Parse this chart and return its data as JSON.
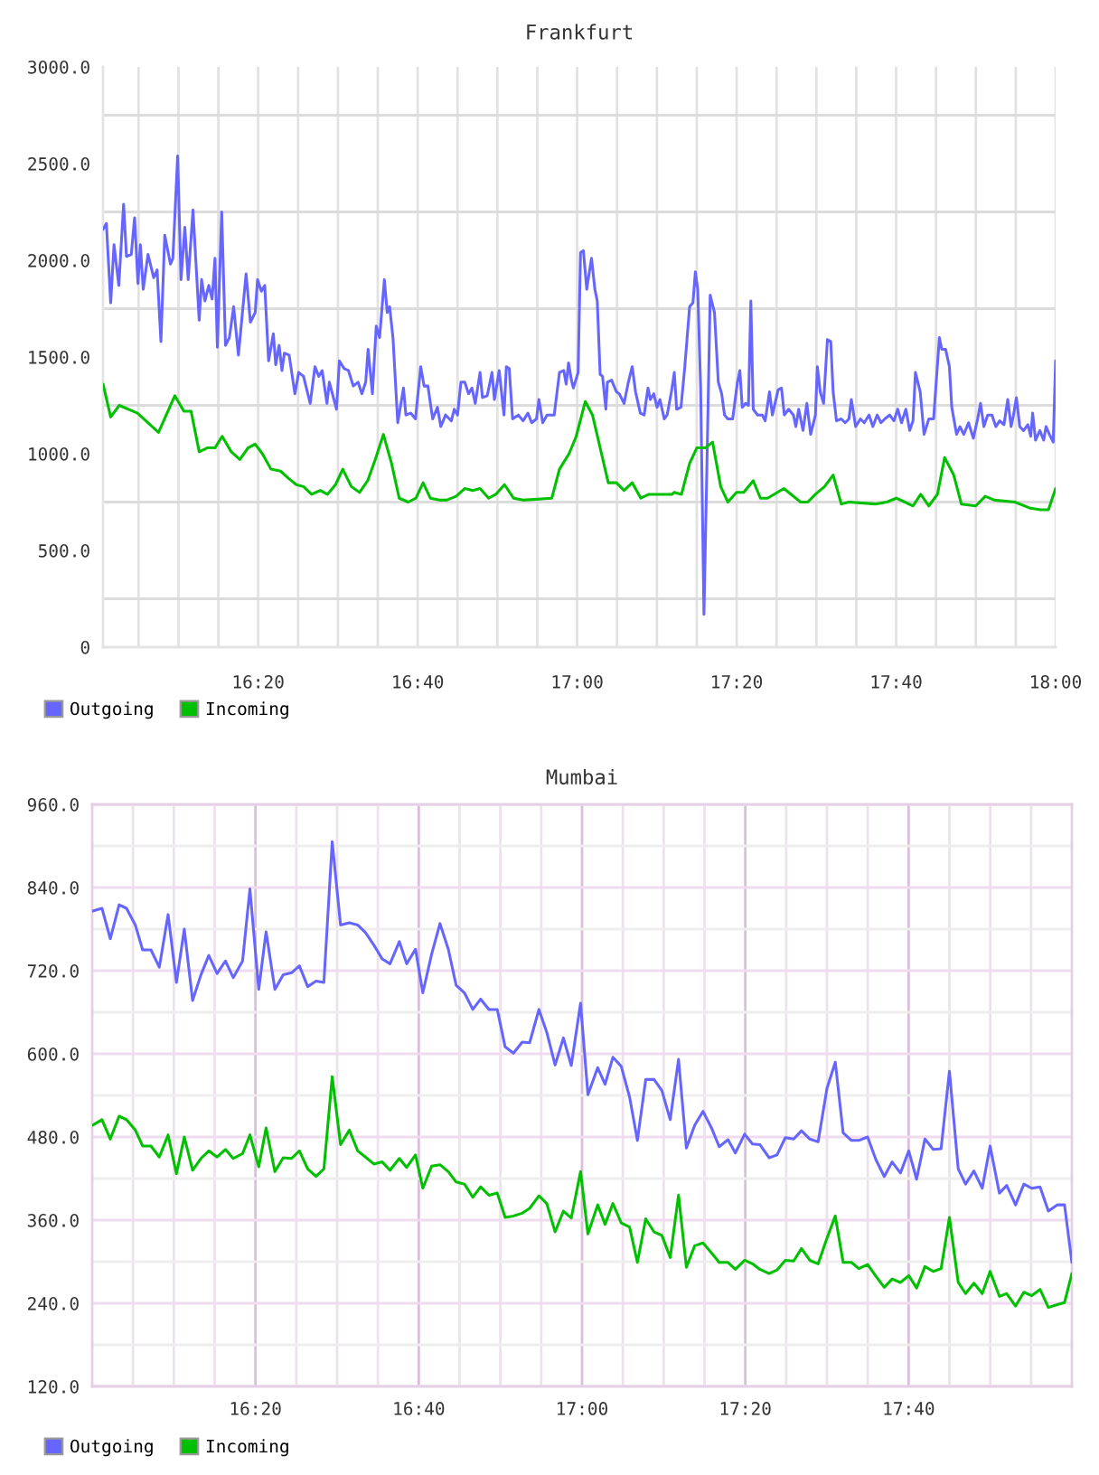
{
  "chart_data": [
    {
      "type": "line",
      "title": "Frankfurt",
      "xlim": [
        16.009,
        18.0
      ],
      "ylim": [
        0,
        3000
      ],
      "xticks": [
        {
          "value": 16.0833,
          "label": null
        },
        {
          "value": 16.1667,
          "label": null
        },
        {
          "value": 16.25,
          "label": null
        },
        {
          "value": 16.3333,
          "label": "16:20"
        },
        {
          "value": 16.4167,
          "label": null
        },
        {
          "value": 16.5,
          "label": null
        },
        {
          "value": 16.5833,
          "label": null
        },
        {
          "value": 16.6667,
          "label": "16:40"
        },
        {
          "value": 16.75,
          "label": null
        },
        {
          "value": 16.8333,
          "label": null
        },
        {
          "value": 16.9167,
          "label": null
        },
        {
          "value": 17.0,
          "label": "17:00"
        },
        {
          "value": 17.0833,
          "label": null
        },
        {
          "value": 17.1667,
          "label": null
        },
        {
          "value": 17.25,
          "label": null
        },
        {
          "value": 17.3333,
          "label": "17:20"
        },
        {
          "value": 17.4167,
          "label": null
        },
        {
          "value": 17.5,
          "label": null
        },
        {
          "value": 17.5833,
          "label": null
        },
        {
          "value": 17.6667,
          "label": "17:40"
        },
        {
          "value": 17.75,
          "label": null
        },
        {
          "value": 17.8333,
          "label": null
        },
        {
          "value": 17.9167,
          "label": null
        },
        {
          "value": 18.0,
          "label": "18:00"
        }
      ],
      "yticks": [
        0,
        {
          "value": 250,
          "label": null
        },
        {
          "value": 500,
          "label": "500.0"
        },
        {
          "value": 750,
          "label": null
        },
        {
          "value": 1000,
          "label": "1000.0"
        },
        {
          "value": 1250,
          "label": null
        },
        {
          "value": 1500,
          "label": "1500.0"
        },
        {
          "value": 1750,
          "label": null
        },
        {
          "value": 2000,
          "label": "2000.0"
        },
        {
          "value": 2250,
          "label": null
        },
        {
          "value": 2500,
          "label": "2500.0"
        },
        {
          "value": 2750,
          "label": null
        },
        {
          "value": 3000,
          "label": "3000.0"
        }
      ],
      "grid": true,
      "legend": "bottom left",
      "series": [
        {
          "name": "Outgoing",
          "color": "#6666ff",
          "x": [
            16.009,
            16.016,
            16.025,
            16.032,
            16.042,
            16.052,
            16.058,
            16.068,
            16.075,
            16.082,
            16.087,
            16.093,
            16.103,
            16.115,
            16.122,
            16.13,
            16.138,
            16.15,
            16.155,
            16.165,
            16.172,
            16.18,
            16.187,
            16.197,
            16.21,
            16.215,
            16.222,
            16.23,
            16.237,
            16.243,
            16.248,
            16.257,
            16.265,
            16.273,
            16.282,
            16.292,
            16.308,
            16.317,
            16.327,
            16.332,
            16.34,
            16.347,
            16.355,
            16.365,
            16.37,
            16.377,
            16.383,
            16.388,
            16.398,
            16.41,
            16.418,
            16.428,
            16.442,
            16.452,
            16.46,
            16.467,
            16.477,
            16.482,
            16.497,
            16.503,
            16.513,
            16.522,
            16.532,
            16.542,
            16.55,
            16.558,
            16.563,
            16.572,
            16.58,
            16.587,
            16.597,
            16.603,
            16.608,
            16.615,
            16.625,
            16.637,
            16.642,
            16.652,
            16.662,
            16.673,
            16.68,
            16.688,
            16.698,
            16.708,
            16.715,
            16.725,
            16.737,
            16.743,
            16.75,
            16.757,
            16.765,
            16.773,
            16.78,
            16.787,
            16.797,
            16.802,
            16.812,
            16.822,
            16.827,
            16.837,
            16.847,
            16.852,
            16.858,
            16.865,
            16.877,
            16.887,
            16.897,
            16.905,
            16.915,
            16.92,
            16.928,
            16.937,
            16.952,
            16.963,
            16.972,
            16.977,
            16.982,
            16.988,
            16.992,
            17.002,
            17.007,
            17.013,
            17.02,
            17.023,
            17.03,
            17.037,
            17.042,
            17.048,
            17.053,
            17.06,
            17.063,
            17.072,
            17.082,
            17.088,
            17.098,
            17.107,
            17.115,
            17.122,
            17.132,
            17.14,
            17.148,
            17.153,
            17.16,
            17.167,
            17.173,
            17.182,
            17.188,
            17.197,
            17.203,
            17.208,
            17.217,
            17.225,
            17.235,
            17.242,
            17.247,
            17.252,
            17.258,
            17.265,
            17.272,
            17.278,
            17.287,
            17.295,
            17.302,
            17.308,
            17.315,
            17.325,
            17.335,
            17.34,
            17.345,
            17.352,
            17.358,
            17.363,
            17.368,
            17.377,
            17.387,
            17.393,
            17.402,
            17.408,
            17.42,
            17.427,
            17.433,
            17.442,
            17.452,
            17.457,
            17.463,
            17.472,
            17.48,
            17.488,
            17.498,
            17.502,
            17.508,
            17.515,
            17.523,
            17.53,
            17.535,
            17.542,
            17.552,
            17.56,
            17.568,
            17.573,
            17.582,
            17.592,
            17.6,
            17.61,
            17.618,
            17.627,
            17.635,
            17.643,
            17.653,
            17.662,
            17.67,
            17.678,
            17.687,
            17.695,
            17.702,
            17.707,
            17.717,
            17.725,
            17.735,
            17.745,
            17.757,
            17.762,
            17.77,
            17.778,
            17.783,
            17.793,
            17.8,
            17.808,
            17.818,
            17.828,
            17.837,
            17.843,
            17.85,
            17.858,
            17.867,
            17.875,
            17.883,
            17.892,
            17.9,
            17.907,
            17.912,
            17.918,
            17.925,
            17.933,
            17.942,
            17.948,
            17.952,
            17.958,
            17.967,
            17.975,
            17.98,
            17.987,
            17.995,
            18.0
          ],
          "values": [
            2160,
            2190,
            1780,
            2080,
            1870,
            2290,
            2020,
            2030,
            2220,
            1880,
            2080,
            1850,
            2030,
            1910,
            1950,
            1580,
            2130,
            1980,
            2010,
            2540,
            1900,
            2170,
            1900,
            2260,
            1690,
            1900,
            1790,
            1870,
            1800,
            2010,
            1550,
            2250,
            1560,
            1600,
            1760,
            1510,
            1930,
            1680,
            1730,
            1900,
            1840,
            1870,
            1480,
            1620,
            1460,
            1560,
            1430,
            1520,
            1510,
            1310,
            1420,
            1400,
            1260,
            1450,
            1400,
            1430,
            1260,
            1370,
            1230,
            1480,
            1440,
            1430,
            1350,
            1370,
            1310,
            1370,
            1540,
            1310,
            1660,
            1600,
            1900,
            1730,
            1760,
            1600,
            1160,
            1340,
            1200,
            1210,
            1180,
            1450,
            1350,
            1350,
            1180,
            1240,
            1140,
            1200,
            1170,
            1230,
            1200,
            1370,
            1370,
            1310,
            1340,
            1260,
            1420,
            1290,
            1300,
            1420,
            1280,
            1430,
            1200,
            1450,
            1440,
            1180,
            1200,
            1170,
            1210,
            1160,
            1180,
            1280,
            1160,
            1200,
            1200,
            1420,
            1430,
            1360,
            1470,
            1380,
            1340,
            1420,
            2040,
            2050,
            1850,
            1900,
            2010,
            1850,
            1790,
            1410,
            1400,
            1230,
            1370,
            1380,
            1320,
            1310,
            1260,
            1370,
            1450,
            1320,
            1210,
            1200,
            1340,
            1280,
            1310,
            1240,
            1280,
            1180,
            1200,
            1320,
            1420,
            1230,
            1240,
            1450,
            1760,
            1780,
            1940,
            1850,
            1350,
            170,
            1040,
            1820,
            1730,
            1370,
            1310,
            1200,
            1180,
            1180,
            1370,
            1430,
            1240,
            1260,
            1250,
            1790,
            1230,
            1200,
            1200,
            1170,
            1320,
            1200,
            1330,
            1340,
            1200,
            1230,
            1200,
            1140,
            1230,
            1120,
            1260,
            1100,
            1200,
            1450,
            1320,
            1260,
            1590,
            1580,
            1320,
            1170,
            1180,
            1160,
            1180,
            1280,
            1140,
            1180,
            1160,
            1200,
            1140,
            1200,
            1160,
            1180,
            1200,
            1170,
            1230,
            1160,
            1230,
            1120,
            1170,
            1420,
            1320,
            1100,
            1180,
            1180,
            1600,
            1540,
            1540,
            1450,
            1240,
            1100,
            1140,
            1100,
            1160,
            1080,
            1180,
            1260,
            1140,
            1200,
            1200,
            1140,
            1170,
            1150,
            1280,
            1140,
            1200,
            1290,
            1140,
            1120,
            1150,
            1090,
            1210,
            1070,
            1120,
            1070,
            1140,
            1100,
            1060,
            1480
          ]
        },
        {
          "name": "Incoming",
          "color": "#00c000",
          "x": [
            16.009,
            16.025,
            16.043,
            16.081,
            16.125,
            16.159,
            16.178,
            16.193,
            16.21,
            16.227,
            16.243,
            16.258,
            16.277,
            16.295,
            16.312,
            16.327,
            16.342,
            16.36,
            16.38,
            16.398,
            16.413,
            16.428,
            16.445,
            16.463,
            16.478,
            16.495,
            16.51,
            16.528,
            16.545,
            16.562,
            16.578,
            16.595,
            16.612,
            16.628,
            16.647,
            16.663,
            16.678,
            16.693,
            16.712,
            16.727,
            16.747,
            16.765,
            16.782,
            16.797,
            16.815,
            16.83,
            16.848,
            16.867,
            16.887,
            16.947,
            16.963,
            16.983,
            16.998,
            17.017,
            17.032,
            17.065,
            17.082,
            17.098,
            17.115,
            17.133,
            17.15,
            17.198,
            17.203,
            17.218,
            17.235,
            17.25,
            17.268,
            17.283,
            17.3,
            17.315,
            17.333,
            17.348,
            17.368,
            17.383,
            17.398,
            17.432,
            17.467,
            17.482,
            17.498,
            17.517,
            17.535,
            17.552,
            17.568,
            17.623,
            17.647,
            17.667,
            17.685,
            17.702,
            17.718,
            17.735,
            17.753,
            17.768,
            17.787,
            17.803,
            17.833,
            17.853,
            17.872,
            17.915,
            17.945,
            17.968,
            17.985,
            18.0
          ],
          "values": [
            1360,
            1190,
            1250,
            1210,
            1110,
            1300,
            1220,
            1220,
            1010,
            1030,
            1030,
            1090,
            1010,
            970,
            1030,
            1050,
            1000,
            920,
            910,
            870,
            840,
            830,
            790,
            810,
            790,
            840,
            920,
            830,
            800,
            860,
            970,
            1100,
            950,
            770,
            750,
            770,
            850,
            770,
            760,
            760,
            780,
            820,
            810,
            820,
            770,
            790,
            840,
            770,
            760,
            770,
            920,
            1000,
            1090,
            1270,
            1200,
            850,
            850,
            810,
            850,
            770,
            790,
            790,
            800,
            790,
            950,
            1030,
            1030,
            1060,
            830,
            750,
            800,
            800,
            860,
            770,
            770,
            820,
            750,
            750,
            790,
            830,
            890,
            740,
            750,
            740,
            750,
            770,
            750,
            730,
            790,
            730,
            790,
            980,
            890,
            740,
            730,
            780,
            760,
            750,
            720,
            710,
            710,
            820
          ]
        }
      ]
    },
    {
      "type": "line",
      "title": "Mumbai",
      "xlim": [
        16.0,
        18.0
      ],
      "ylim": [
        120,
        960
      ],
      "xticks": [
        {
          "value": 16.0833,
          "label": null
        },
        {
          "value": 16.1667,
          "label": null
        },
        {
          "value": 16.25,
          "label": null
        },
        {
          "value": 16.3333,
          "label": "16:20"
        },
        {
          "value": 16.4167,
          "label": null
        },
        {
          "value": 16.5,
          "label": null
        },
        {
          "value": 16.5833,
          "label": null
        },
        {
          "value": 16.6667,
          "label": "16:40"
        },
        {
          "value": 16.75,
          "label": null
        },
        {
          "value": 16.8333,
          "label": null
        },
        {
          "value": 16.9167,
          "label": null
        },
        {
          "value": 17.0,
          "label": "17:00"
        },
        {
          "value": 17.0833,
          "label": null
        },
        {
          "value": 17.1667,
          "label": null
        },
        {
          "value": 17.25,
          "label": null
        },
        {
          "value": 17.3333,
          "label": "17:20"
        },
        {
          "value": 17.4167,
          "label": null
        },
        {
          "value": 17.5,
          "label": null
        },
        {
          "value": 17.5833,
          "label": null
        },
        {
          "value": 17.6667,
          "label": "17:40"
        },
        {
          "value": 17.75,
          "label": null
        },
        {
          "value": 17.8333,
          "label": null
        },
        {
          "value": 17.9167,
          "label": null
        }
      ],
      "yticks": [
        {
          "value": 120,
          "label": "120.0"
        },
        {
          "value": 180,
          "label": null
        },
        {
          "value": 240,
          "label": "240.0"
        },
        {
          "value": 300,
          "label": null
        },
        {
          "value": 360,
          "label": "360.0"
        },
        {
          "value": 420,
          "label": null
        },
        {
          "value": 480,
          "label": "480.0"
        },
        {
          "value": 540,
          "label": null
        },
        {
          "value": 600,
          "label": "600.0"
        },
        {
          "value": 660,
          "label": null
        },
        {
          "value": 720,
          "label": "720.0"
        },
        {
          "value": 780,
          "label": null
        },
        {
          "value": 840,
          "label": "840.0"
        },
        {
          "value": 900,
          "label": null
        },
        {
          "value": 960,
          "label": "960.0"
        }
      ],
      "grid": true,
      "legend": "bottom left",
      "x": [
        16.001,
        16.02,
        16.037,
        16.055,
        16.07,
        16.088,
        16.103,
        16.12,
        16.137,
        16.155,
        16.172,
        16.188,
        16.205,
        16.222,
        16.238,
        16.255,
        16.272,
        16.288,
        16.307,
        16.322,
        16.34,
        16.355,
        16.373,
        16.39,
        16.407,
        16.423,
        16.44,
        16.457,
        16.473,
        16.49,
        16.507,
        16.525,
        16.542,
        16.558,
        16.575,
        16.592,
        16.608,
        16.627,
        16.642,
        16.66,
        16.675,
        16.693,
        16.71,
        16.727,
        16.743,
        16.76,
        16.777,
        16.793,
        16.81,
        16.827,
        16.843,
        16.86,
        16.878,
        16.893,
        16.912,
        16.928,
        16.945,
        16.962,
        16.978,
        16.997,
        17.012,
        17.032,
        17.047,
        17.063,
        17.08,
        17.097,
        17.113,
        17.13,
        17.147,
        17.163,
        17.18,
        17.197,
        17.213,
        17.23,
        17.247,
        17.265,
        17.28,
        17.298,
        17.313,
        17.332,
        17.348,
        17.363,
        17.382,
        17.398,
        17.415,
        17.432,
        17.448,
        17.465,
        17.482,
        17.5,
        17.517,
        17.533,
        17.55,
        17.565,
        17.583,
        17.6,
        17.617,
        17.633,
        17.65,
        17.667,
        17.683,
        17.7,
        17.717,
        17.733,
        17.75,
        17.768,
        17.783,
        17.8,
        17.817,
        17.833,
        17.852,
        17.867,
        17.885,
        17.902,
        17.918,
        17.935,
        17.952,
        17.97,
        17.985,
        18.0
      ],
      "series": [
        {
          "name": "Outgoing",
          "color": "#6666ff",
          "values": [
            806,
            810,
            766,
            815,
            810,
            786,
            750,
            750,
            725,
            801,
            703,
            780,
            677,
            714,
            742,
            716,
            734,
            710,
            734,
            838,
            693,
            776,
            693,
            714,
            717,
            727,
            697,
            705,
            703,
            906,
            786,
            789,
            786,
            775,
            757,
            737,
            730,
            762,
            730,
            751,
            688,
            744,
            788,
            751,
            699,
            688,
            664,
            679,
            664,
            664,
            610,
            601,
            617,
            616,
            664,
            631,
            584,
            623,
            583,
            673,
            541,
            580,
            556,
            595,
            582,
            538,
            475,
            563,
            563,
            547,
            505,
            592,
            464,
            497,
            517,
            492,
            466,
            476,
            457,
            484,
            470,
            469,
            450,
            454,
            479,
            477,
            489,
            477,
            473,
            550,
            588,
            486,
            475,
            475,
            480,
            447,
            423,
            444,
            428,
            460,
            419,
            477,
            462,
            463,
            575,
            434,
            412,
            431,
            406,
            467,
            399,
            410,
            382,
            412,
            406,
            408,
            373,
            382,
            382,
            299
          ]
        },
        {
          "name": "Incoming",
          "color": "#00c000",
          "values": [
            497,
            505,
            477,
            510,
            505,
            490,
            467,
            467,
            451,
            483,
            427,
            480,
            432,
            449,
            460,
            451,
            462,
            449,
            456,
            483,
            437,
            493,
            430,
            450,
            449,
            460,
            434,
            423,
            434,
            567,
            469,
            490,
            460,
            451,
            441,
            444,
            432,
            449,
            436,
            454,
            406,
            438,
            440,
            430,
            415,
            412,
            393,
            408,
            396,
            399,
            364,
            366,
            370,
            377,
            395,
            384,
            343,
            373,
            363,
            430,
            340,
            382,
            354,
            384,
            356,
            350,
            299,
            362,
            343,
            338,
            306,
            396,
            292,
            323,
            327,
            312,
            299,
            299,
            289,
            302,
            297,
            289,
            283,
            288,
            302,
            301,
            319,
            302,
            297,
            334,
            366,
            299,
            299,
            290,
            296,
            279,
            263,
            275,
            270,
            280,
            262,
            293,
            286,
            290,
            364,
            270,
            254,
            269,
            254,
            286,
            250,
            254,
            236,
            256,
            251,
            260,
            234,
            238,
            241,
            283
          ]
        }
      ]
    }
  ]
}
